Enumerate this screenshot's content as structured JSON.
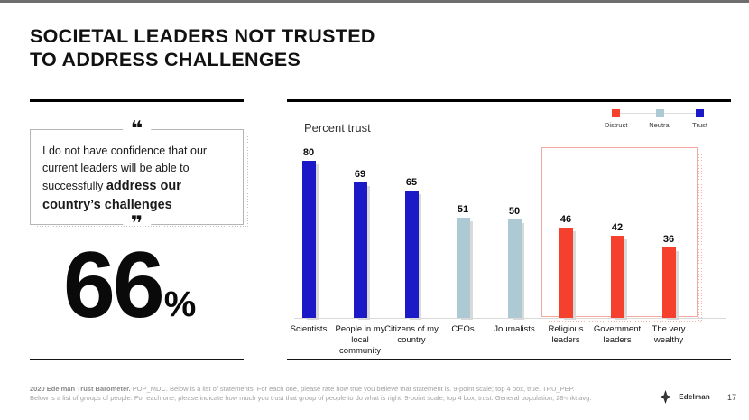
{
  "slide": {
    "title_line1": "SOCIETAL LEADERS NOT TRUSTED",
    "title_line2": "TO ADDRESS CHALLENGES"
  },
  "quote": {
    "open_mark": "❝",
    "close_mark": "❞",
    "text_regular": "I do not have confidence that our current leaders will be able to successfully ",
    "text_bold": "address our country’s challenges"
  },
  "stat": {
    "value": "66",
    "unit": "%"
  },
  "chart_data": {
    "type": "bar",
    "title": "Percent trust",
    "categories": [
      "Scientists",
      "People in my local community",
      "Citizens of my country",
      "CEOs",
      "Journalists",
      "Religious leaders",
      "Government leaders",
      "The very wealthy"
    ],
    "values": [
      80,
      69,
      65,
      51,
      50,
      46,
      42,
      36
    ],
    "groups": [
      "trust",
      "trust",
      "trust",
      "neutral",
      "neutral",
      "distrust",
      "distrust",
      "distrust"
    ],
    "group_colors": {
      "trust": "#1b1ac6",
      "neutral": "#adc9d3",
      "distrust": "#f5402e"
    },
    "legend": [
      {
        "label": "Distrust",
        "key": "distrust"
      },
      {
        "label": "Neutral",
        "key": "neutral"
      },
      {
        "label": "Trust",
        "key": "trust"
      }
    ],
    "legend_position": "top-right",
    "grid": false,
    "ylim": [
      0,
      100
    ],
    "highlight": {
      "from": "Religious leaders",
      "to": "The very wealthy",
      "style": "red-outline-box"
    }
  },
  "footer": {
    "line1_bold": "2020 Edelman Trust Barometer.",
    "line1_rest": " POP_MDC. Below is a list of statements. For each one, please rate how true you believe that statement is. 9-point scale; top 4 box, true. TRU_PEP.",
    "line2": "Below is a list of groups of people. For each one, please indicate how much you trust that group of people to do what is right. 9-point scale; top 4 box, trust. General population, 28-mkt avg.",
    "brand": "Edelman",
    "page": "17"
  }
}
